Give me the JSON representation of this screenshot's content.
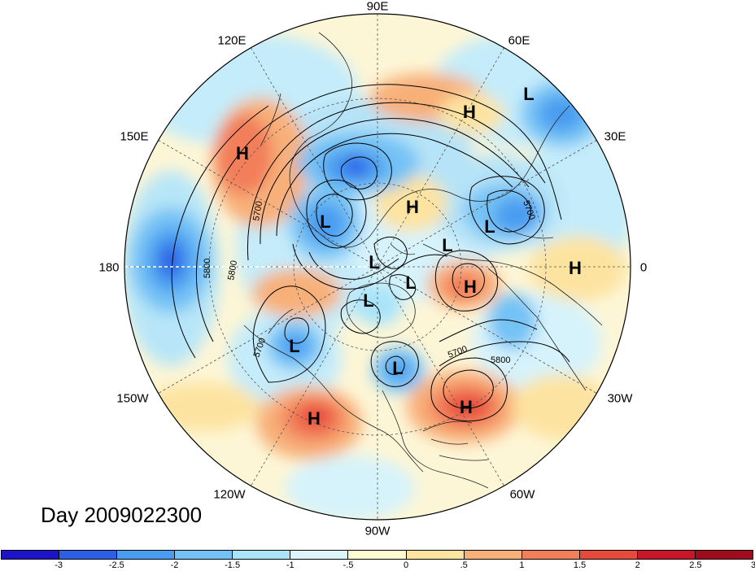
{
  "title": "Day 2009022300",
  "longitude_labels": {
    "lon_90e": "90E",
    "lon_60e": "60E",
    "lon_30e": "30E",
    "lon_0": "0",
    "lon_30w": "30W",
    "lon_60w": "60W",
    "lon_90w": "90W",
    "lon_120w": "120W",
    "lon_150w": "150W",
    "lon_180": "180",
    "lon_150e": "150E",
    "lon_120e": "120E"
  },
  "colorbar": {
    "colors": [
      "#1d14c8",
      "#2c5ee6",
      "#4a9cf0",
      "#74c2f5",
      "#a9e4fa",
      "#dcf5fc",
      "#fffbd2",
      "#fde3a0",
      "#f8b079",
      "#f27e5a",
      "#e64a3a",
      "#c8162a",
      "#a00c1e"
    ],
    "labels": [
      "-3",
      "-2.5",
      "-2",
      "-1.5",
      "-1",
      "-.5",
      "0",
      ".5",
      "1",
      "1.5",
      "2",
      "2.5",
      "3"
    ]
  },
  "contour_labels": [
    "5700",
    "5700",
    "5800",
    "5800",
    "5700",
    "5700",
    "5800",
    "5700"
  ],
  "pressure_centers": [
    "H",
    "H",
    "H",
    "H",
    "H",
    "H",
    "H",
    "H",
    "L",
    "L",
    "L",
    "L",
    "L",
    "L",
    "L",
    "L",
    "L",
    "L"
  ],
  "colors": {
    "meridian_dash": "#888888",
    "land_line": "#222222",
    "contour": "#000000"
  }
}
